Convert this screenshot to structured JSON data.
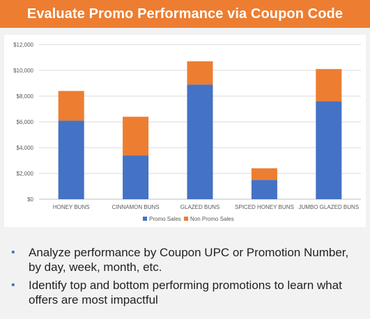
{
  "header": {
    "title": "Evaluate Promo Performance via Coupon Code"
  },
  "colors": {
    "accent": "#ed7d31",
    "promo": "#4472c4",
    "non_promo": "#ed7d31",
    "bullet": "#4472c4"
  },
  "chart_data": {
    "type": "bar",
    "stacked": true,
    "categories": [
      "HONEY BUNS",
      "CINNAMON BUNS",
      "GLAZED BUNS",
      "SPICED HONEY BUNS",
      "JUMBO GLAZED BUNS"
    ],
    "series": [
      {
        "name": "Promo Sales",
        "values": [
          6100,
          3400,
          8900,
          1500,
          7600
        ]
      },
      {
        "name": "Non Promo Sales",
        "values": [
          2300,
          3000,
          1800,
          900,
          2500
        ]
      }
    ],
    "yticks": [
      "$0",
      "$2,000",
      "$4,000",
      "$6,000",
      "$8,000",
      "$10,000",
      "$12,000"
    ],
    "ylim": [
      0,
      12000
    ],
    "grid": true,
    "legend": "bottom"
  },
  "bullets": [
    "Analyze performance by Coupon UPC or Promotion Number, by day, week, month, etc.",
    "Identify top and bottom performing promotions to learn what offers are most impactful"
  ]
}
